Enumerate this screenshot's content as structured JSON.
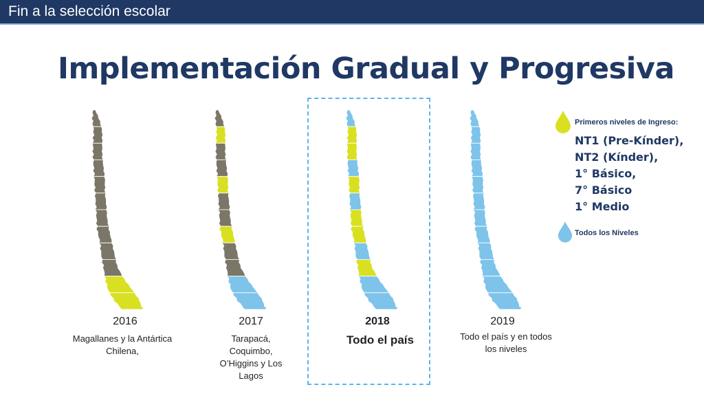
{
  "header": {
    "title": "Fin a la selección escolar"
  },
  "main": {
    "title": "Implementación Gradual y Progresiva"
  },
  "colors": {
    "grey": "#7b7667",
    "yellow": "#d9e021",
    "blue": "#7ec3ea",
    "navy": "#1f3864",
    "highlight": "#5bb5e6"
  },
  "stages": [
    {
      "year": "2016",
      "caption": "Magallanes y la Antártica Chilena,",
      "segments": [
        "grey",
        "grey",
        "grey",
        "grey",
        "grey",
        "grey",
        "grey",
        "grey",
        "grey",
        "grey",
        "yellow",
        "yellow"
      ]
    },
    {
      "year": "2017",
      "caption": "Tarapacá, Coquimbo, O’Higgins y Los Lagos",
      "segments": [
        "grey",
        "yellow",
        "grey",
        "grey",
        "yellow",
        "grey",
        "grey",
        "yellow",
        "grey",
        "grey",
        "blue",
        "blue"
      ]
    },
    {
      "year": "2018",
      "caption": "Todo el país",
      "segments": [
        "blue",
        "yellow",
        "yellow",
        "blue",
        "yellow",
        "blue",
        "yellow",
        "yellow",
        "blue",
        "yellow",
        "blue",
        "blue"
      ]
    },
    {
      "year": "2019",
      "caption": "Todo el país y en todos los niveles",
      "segments": [
        "blue",
        "blue",
        "blue",
        "blue",
        "blue",
        "blue",
        "blue",
        "blue",
        "blue",
        "blue",
        "blue",
        "blue"
      ]
    }
  ],
  "legend": {
    "first_levels_heading": "Primeros niveles de Ingreso:",
    "levels": [
      "NT1 (Pre-Kínder),",
      "NT2 (Kínder),",
      "1° Básico,",
      "7° Básico",
      "1° Medio"
    ],
    "all_levels": "Todos los Niveles",
    "first_levels_icon": "yellow-drop-icon",
    "all_levels_icon": "blue-drop-icon"
  }
}
